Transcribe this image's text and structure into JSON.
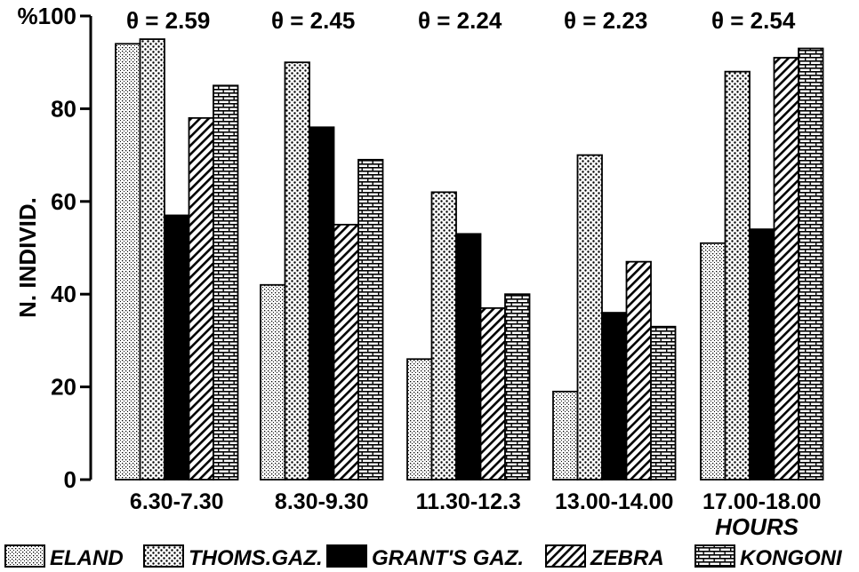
{
  "chart_data": {
    "type": "bar",
    "ylabel": "N. INDIVID.",
    "ylabel_prefix": "%",
    "xlabel": "HOURS",
    "ylim": [
      0,
      100
    ],
    "yticks": [
      0,
      20,
      40,
      60,
      80,
      100
    ],
    "grid": false,
    "legend_position": "bottom",
    "categories": [
      "6.30-7.30",
      "8.30-9.30",
      "11.30-12.30",
      "13.00-14.00",
      "17.00-18.00"
    ],
    "category_labels_shown": [
      "6.30-7.30",
      "8.30-9.30",
      "11.30-12.3",
      "13.00-14.00",
      "17.00-18.00"
    ],
    "annotations": [
      "θ = 2.59",
      "θ = 2.45",
      "θ = 2.24",
      "θ = 2.23",
      "θ = 2.54"
    ],
    "series": [
      {
        "name": "ELAND",
        "pattern": "fine-dots",
        "values": [
          94,
          42,
          26,
          19,
          51
        ]
      },
      {
        "name": "THOMS.GAZ.",
        "pattern": "dots",
        "values": [
          95,
          90,
          62,
          70,
          88
        ]
      },
      {
        "name": "GRANT'S GAZ.",
        "pattern": "solid",
        "values": [
          57,
          76,
          53,
          36,
          54
        ]
      },
      {
        "name": "ZEBRA",
        "pattern": "diagonal",
        "values": [
          78,
          55,
          37,
          47,
          91
        ]
      },
      {
        "name": "KONGONI",
        "pattern": "bricks",
        "values": [
          85,
          69,
          40,
          33,
          93
        ]
      }
    ],
    "colors": {
      "ink": "#000000",
      "paper": "#ffffff"
    }
  }
}
